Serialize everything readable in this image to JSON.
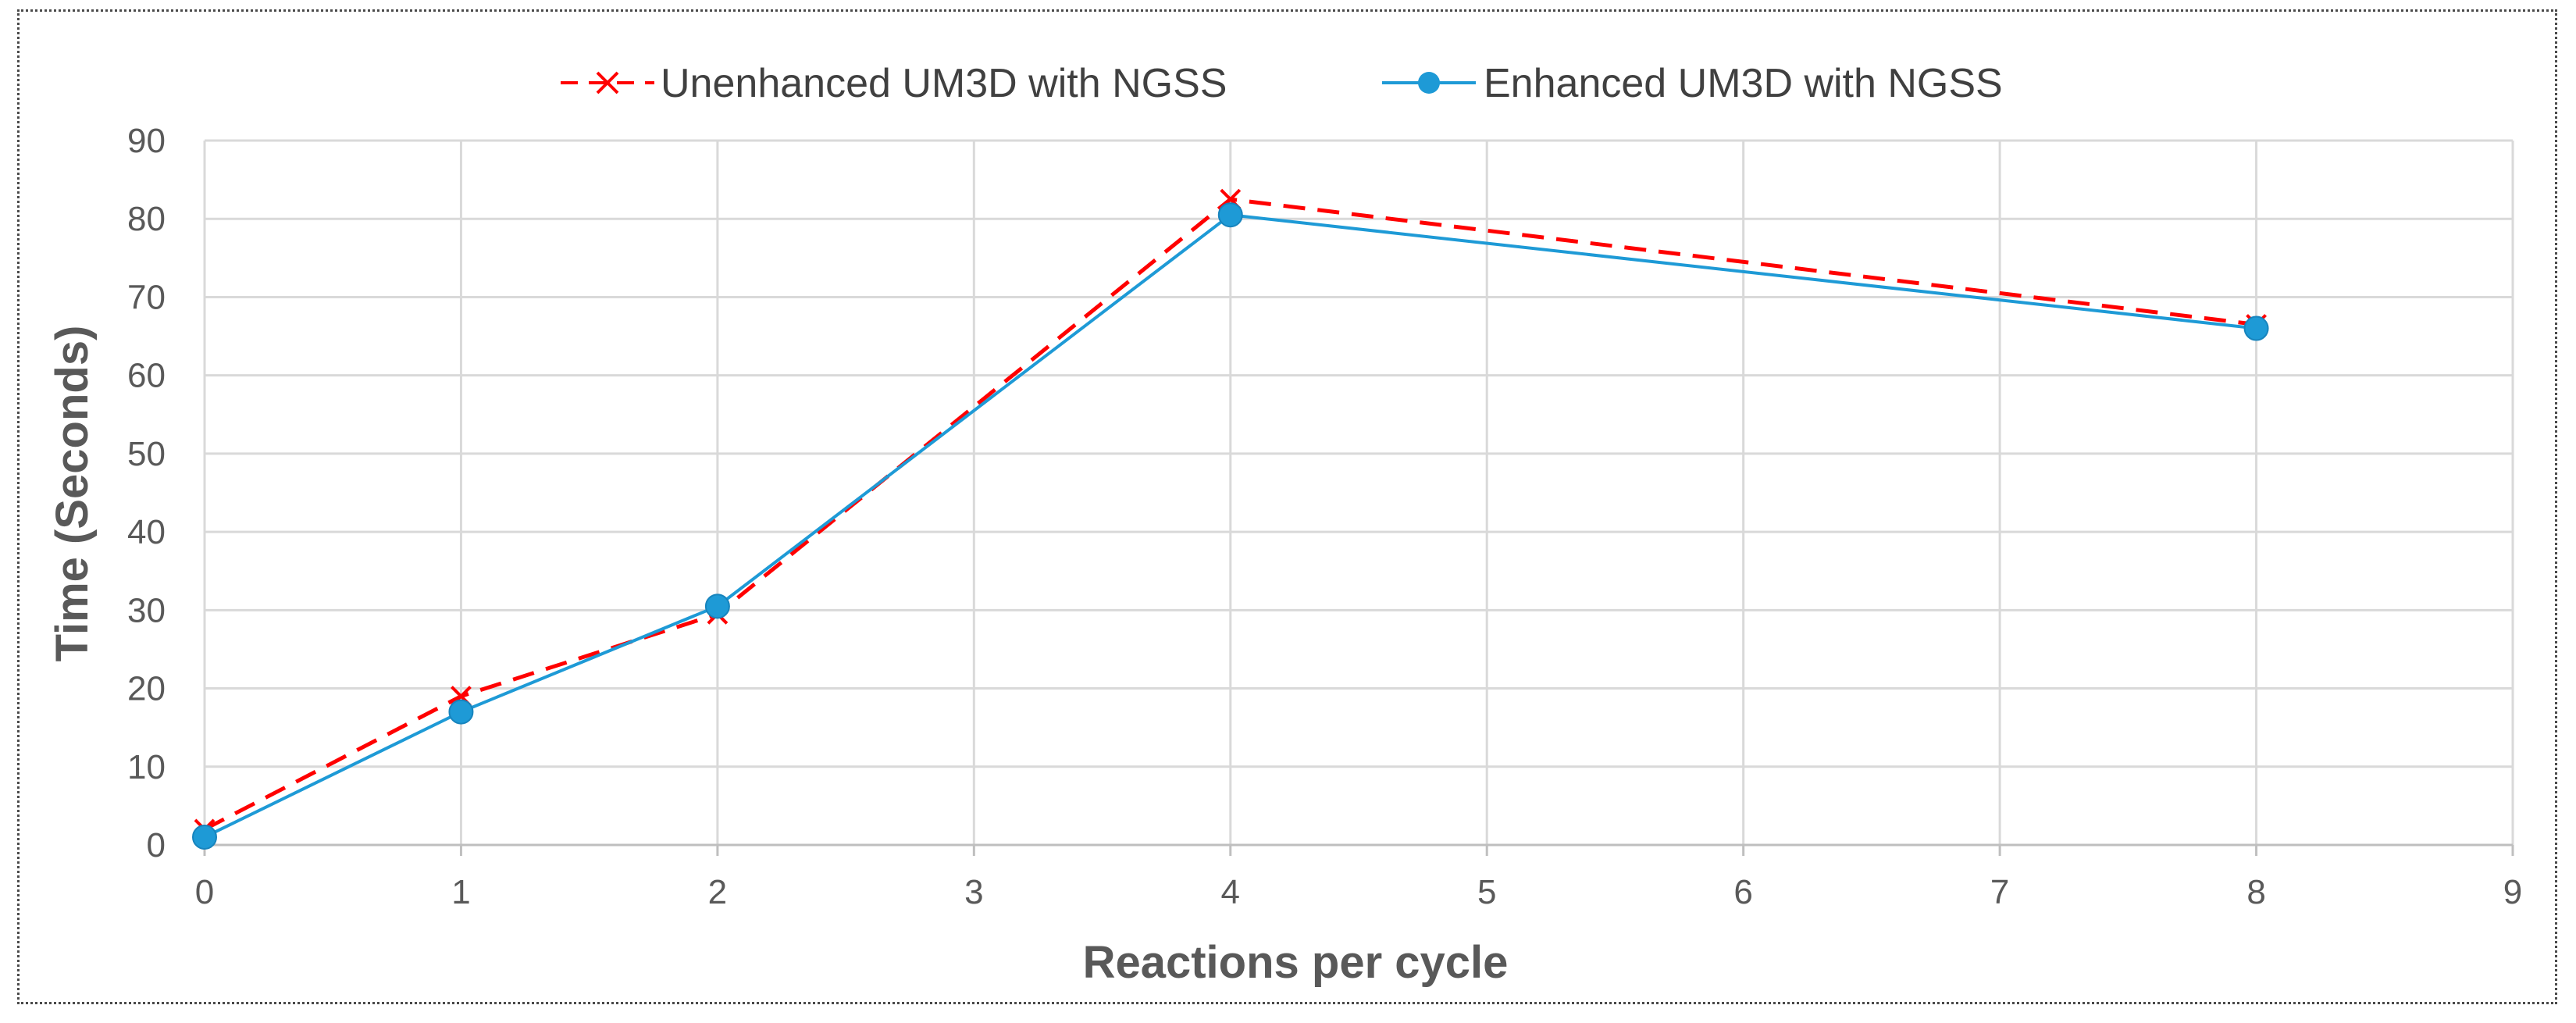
{
  "chart_data": {
    "type": "line",
    "title": "",
    "xlabel": "Reactions per cycle",
    "ylabel": "Time (Seconds)",
    "xlim": [
      0,
      9
    ],
    "ylim": [
      0,
      90
    ],
    "x_ticks": [
      0,
      1,
      2,
      3,
      4,
      5,
      6,
      7,
      8,
      9
    ],
    "y_ticks": [
      0,
      10,
      20,
      30,
      40,
      50,
      60,
      70,
      80,
      90
    ],
    "grid": true,
    "legend_position": "top-center",
    "series": [
      {
        "name": "Unenhanced UM3D with NGSS",
        "color": "#ff0000",
        "line_style": "dashed",
        "marker": "x",
        "x": [
          0,
          1,
          2,
          4,
          8
        ],
        "y": [
          2,
          19,
          29.5,
          82.5,
          66.5
        ]
      },
      {
        "name": "Enhanced UM3D with NGSS",
        "color": "#1e9ad6",
        "line_style": "solid",
        "marker": "circle",
        "x": [
          0,
          1,
          2,
          4,
          8
        ],
        "y": [
          1,
          17,
          30.5,
          80.5,
          66
        ]
      }
    ]
  }
}
